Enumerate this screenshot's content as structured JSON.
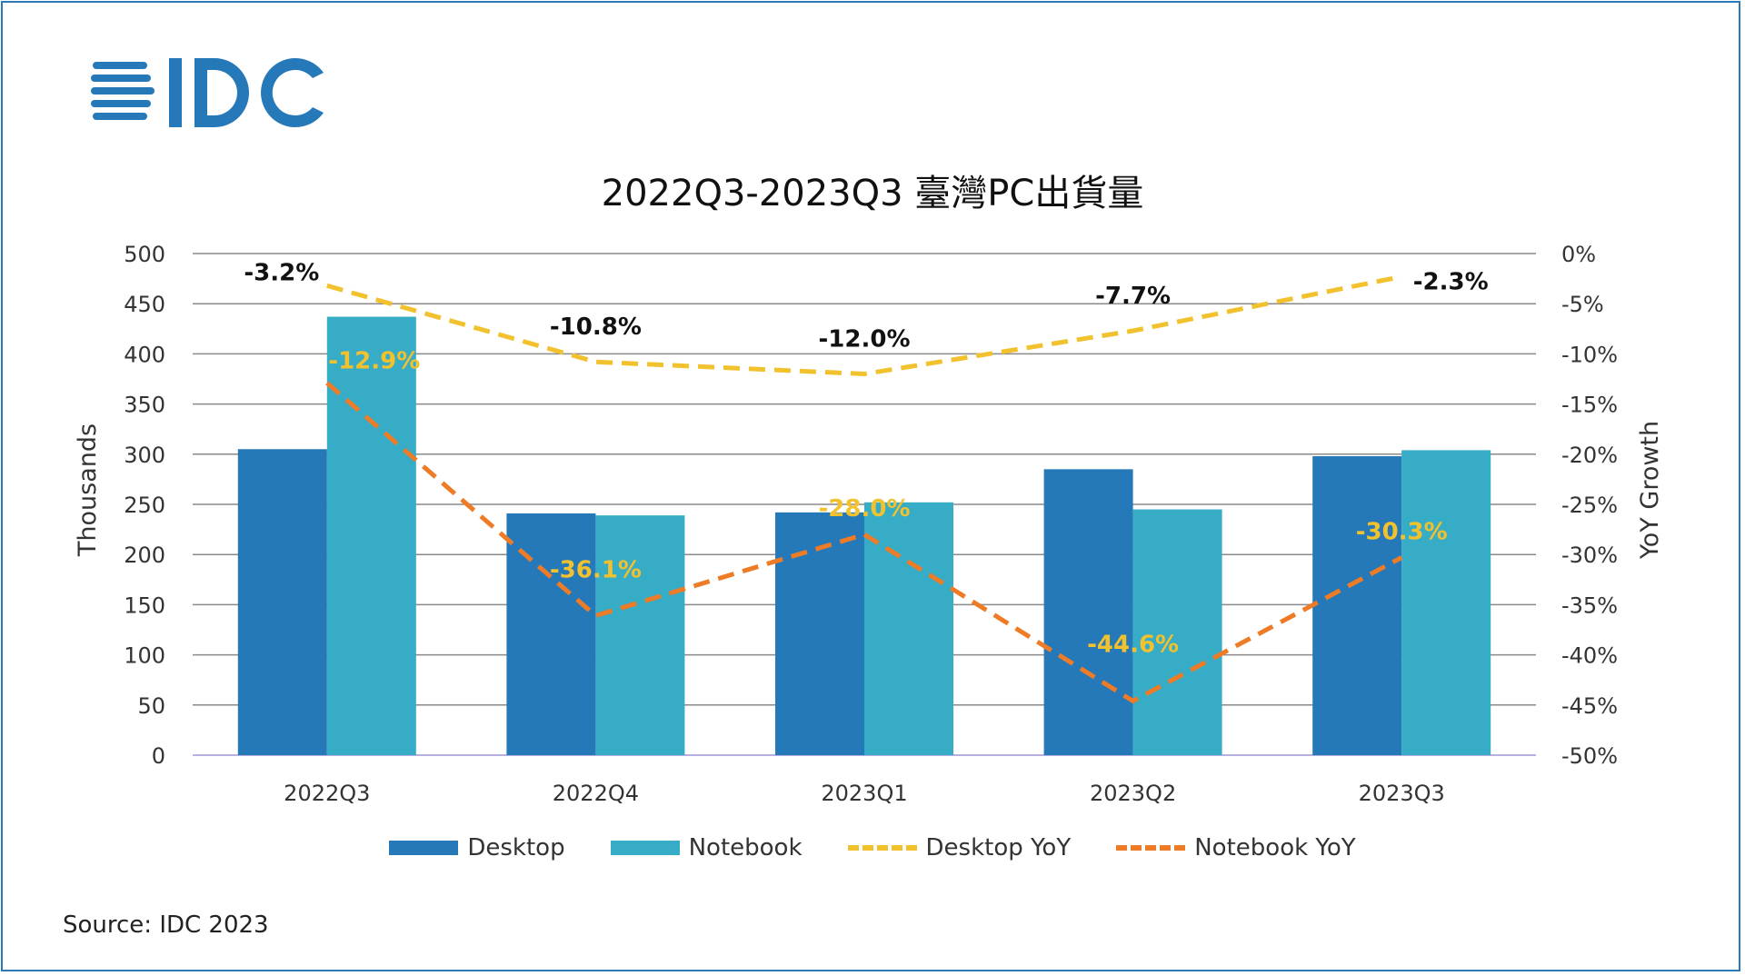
{
  "logo_text": "IDC",
  "chart_data": {
    "type": "bar",
    "title": "2022Q3-2023Q3 臺灣PC出貨量",
    "categories": [
      "2022Q3",
      "2022Q4",
      "2023Q1",
      "2023Q2",
      "2023Q3"
    ],
    "ylabel": "Thousands",
    "y2label": "YoY Growth",
    "ylim": [
      0,
      500
    ],
    "y2lim": [
      -50,
      0
    ],
    "yticks": [
      0,
      50,
      100,
      150,
      200,
      250,
      300,
      350,
      400,
      450,
      500
    ],
    "y2ticks": [
      "0%",
      "-5%",
      "-10%",
      "-15%",
      "-20%",
      "-25%",
      "-30%",
      "-35%",
      "-40%",
      "-45%",
      "-50%"
    ],
    "grid": true,
    "legend_position": "bottom",
    "series": [
      {
        "name": "Desktop",
        "type": "bar",
        "axis": "left",
        "color": "#2579b9",
        "values": [
          305,
          241,
          242,
          285,
          298
        ]
      },
      {
        "name": "Notebook",
        "type": "bar",
        "axis": "left",
        "color": "#36acc6",
        "values": [
          437,
          239,
          252,
          245,
          304
        ]
      },
      {
        "name": "Desktop YoY",
        "type": "line",
        "style": "dashed",
        "axis": "right",
        "color": "#f2c12e",
        "values": [
          -3.2,
          -10.8,
          -12.0,
          -7.7,
          -2.3
        ],
        "labels": [
          "-3.2%",
          "-10.8%",
          "-12.0%",
          "-7.7%",
          "-2.3%"
        ],
        "label_color": "#111111"
      },
      {
        "name": "Notebook YoY",
        "type": "line",
        "style": "dashed",
        "axis": "right",
        "color": "#ee7b26",
        "values": [
          -12.9,
          -36.1,
          -28.0,
          -44.6,
          -30.3
        ],
        "labels": [
          "-12.9%",
          "-36.1%",
          "-28.0%",
          "-44.6%",
          "-30.3%"
        ],
        "label_color": "#f2c12e"
      }
    ]
  },
  "source": "Source: IDC 2023"
}
